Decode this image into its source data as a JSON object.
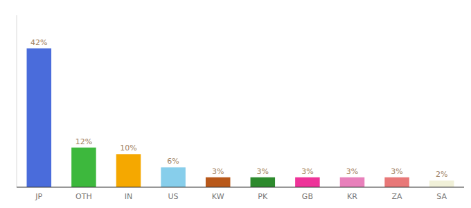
{
  "chart_data": {
    "type": "bar",
    "categories": [
      "JP",
      "OTH",
      "IN",
      "US",
      "KW",
      "PK",
      "GB",
      "KR",
      "ZA",
      "SA"
    ],
    "values": [
      42,
      12,
      10,
      6,
      3,
      3,
      3,
      3,
      3,
      2
    ],
    "value_labels": [
      "42%",
      "12%",
      "10%",
      "6%",
      "3%",
      "3%",
      "3%",
      "3%",
      "3%",
      "2%"
    ],
    "colors": [
      "#4a6cdb",
      "#3db83d",
      "#f5a800",
      "#87ceeb",
      "#b8581a",
      "#2d8a2d",
      "#ee3399",
      "#e880bb",
      "#e87878",
      "#f0f0d8"
    ],
    "ylim": [
      0,
      52
    ],
    "tick_labels": "x"
  }
}
